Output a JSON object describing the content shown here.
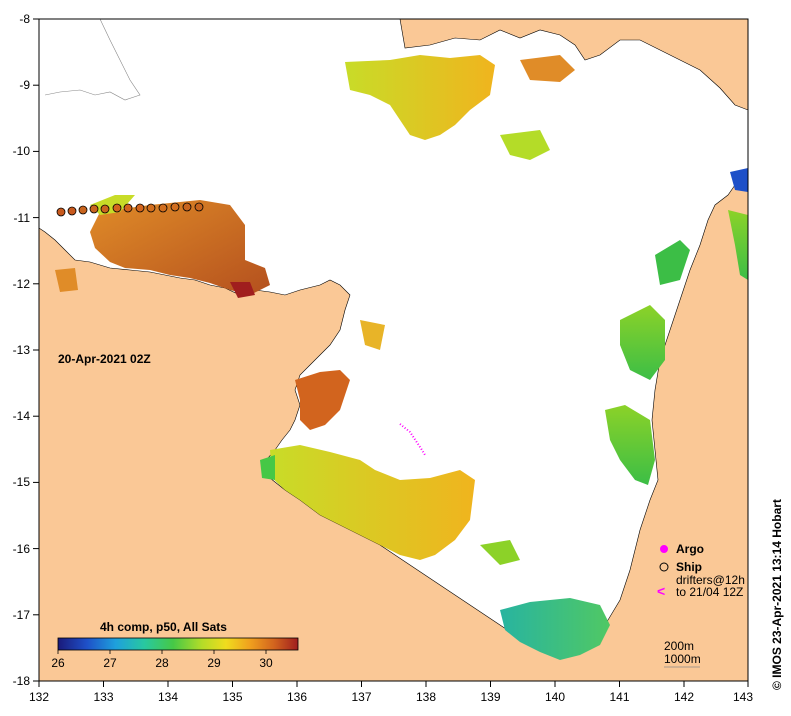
{
  "map": {
    "date_label": "20-Apr-2021 02Z",
    "credit": "© IMOS 23-Apr-2021 13:14 Hobart",
    "composite_label": "4h comp, p50, All Sats",
    "x_ticks": [
      "132",
      "133",
      "134",
      "135",
      "136",
      "137",
      "138",
      "139",
      "140",
      "141",
      "142",
      "143"
    ],
    "y_ticks": [
      "-8",
      "-9",
      "-10",
      "-11",
      "-12",
      "-13",
      "-14",
      "-15",
      "-16",
      "-17",
      "-18"
    ],
    "colorbar_ticks": [
      "26",
      "27",
      "28",
      "29",
      "30"
    ],
    "legend": {
      "argo": "Argo",
      "ship": "Ship",
      "drifters_line1": "drifters@12h",
      "drifters_line2": "to 21/04 12Z",
      "contour_200": "200m",
      "contour_1000": "1000m"
    },
    "colors": {
      "land": "#fac896",
      "ocean_nodata": "#ffffff",
      "argo": "#ff00ff",
      "drifter": "#ff00ff"
    }
  }
}
